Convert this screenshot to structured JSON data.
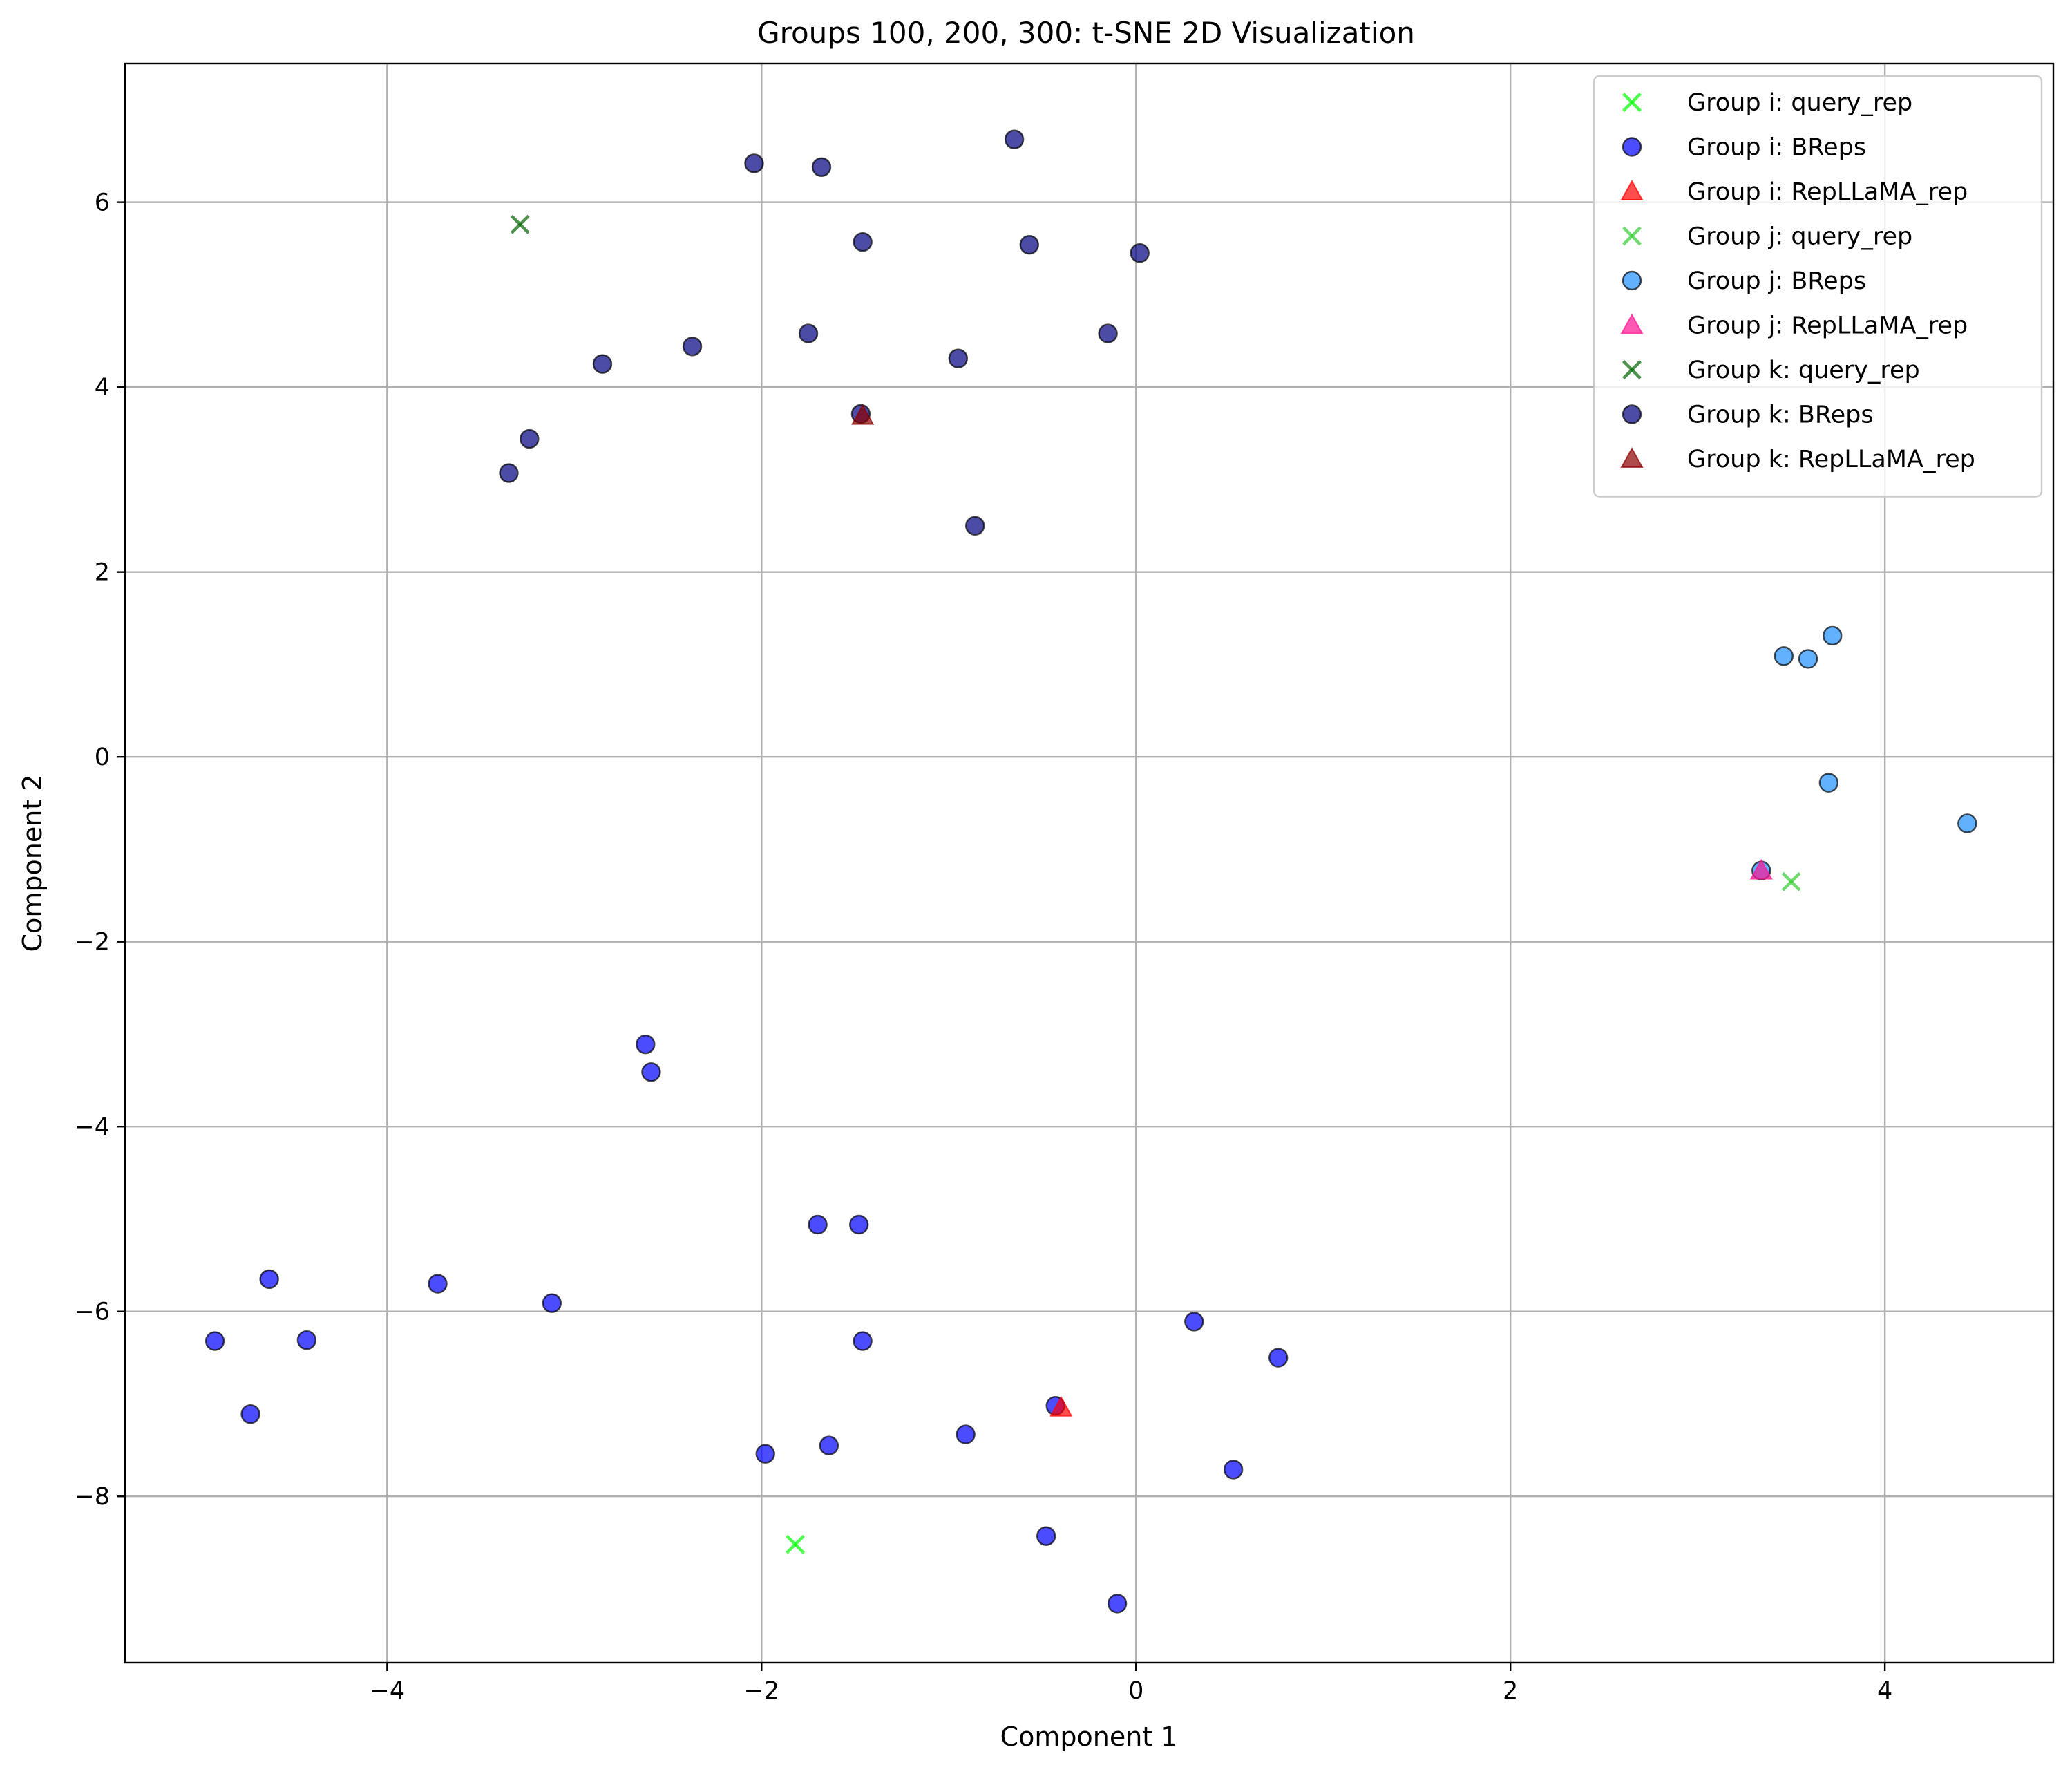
{
  "chart_data": {
    "type": "scatter",
    "title": "Groups 100, 200, 300: t-SNE 2D Visualization",
    "xlabel": "Component 1",
    "ylabel": "Component 2",
    "xlim": [
      -5.4,
      4.9
    ],
    "ylim": [
      -9.8,
      7.5
    ],
    "xticks": [
      -4,
      -2,
      0,
      2,
      4
    ],
    "xtick_labels": [
      "−4",
      "−2",
      "0",
      "2",
      "4"
    ],
    "yticks": [
      -8,
      -6,
      -4,
      -2,
      0,
      2,
      4,
      6
    ],
    "ytick_labels": [
      "−8",
      "−6",
      "−4",
      "−2",
      "0",
      "2",
      "4",
      "6"
    ],
    "grid": true,
    "legend_position": "top-right",
    "series": [
      {
        "name": "Group i: query_rep",
        "marker": "x",
        "color": "#00ff00",
        "alpha": 0.7,
        "points": [
          [
            -1.82,
            -8.52
          ]
        ]
      },
      {
        "name": "Group i: BReps",
        "marker": "circle",
        "color": "#0000ff",
        "alpha": 0.7,
        "points": [
          [
            -2.62,
            -3.11
          ],
          [
            -2.59,
            -3.41
          ],
          [
            -1.7,
            -5.06
          ],
          [
            -1.48,
            -5.06
          ],
          [
            -4.63,
            -5.65
          ],
          [
            -3.73,
            -5.7
          ],
          [
            -3.12,
            -5.91
          ],
          [
            -4.92,
            -6.32
          ],
          [
            -4.43,
            -6.31
          ],
          [
            -4.73,
            -7.11
          ],
          [
            -1.46,
            -6.32
          ],
          [
            -1.98,
            -7.54
          ],
          [
            -1.64,
            -7.45
          ],
          [
            -0.91,
            -7.33
          ],
          [
            -0.43,
            -7.02
          ],
          [
            0.31,
            -6.11
          ],
          [
            0.76,
            -6.5
          ],
          [
            0.52,
            -7.71
          ],
          [
            -0.48,
            -8.43
          ],
          [
            -0.1,
            -9.16
          ]
        ]
      },
      {
        "name": "Group i: RepLLaMA_rep",
        "marker": "triangle",
        "color": "#ff0000",
        "alpha": 0.7,
        "points": [
          [
            -0.4,
            -7.04
          ]
        ]
      },
      {
        "name": "Group j: query_rep",
        "marker": "x",
        "color": "#32cd32",
        "alpha": 0.7,
        "points": [
          [
            3.5,
            -1.35
          ]
        ]
      },
      {
        "name": "Group j: BReps",
        "marker": "circle",
        "color": "#1e90ff",
        "alpha": 0.7,
        "points": [
          [
            3.46,
            1.09
          ],
          [
            3.59,
            1.06
          ],
          [
            3.72,
            1.31
          ],
          [
            3.7,
            -0.28
          ],
          [
            4.44,
            -0.72
          ],
          [
            3.34,
            -1.23
          ]
        ]
      },
      {
        "name": "Group j: RepLLaMA_rep",
        "marker": "triangle",
        "color": "#ff1493",
        "alpha": 0.7,
        "points": [
          [
            3.34,
            -1.23
          ]
        ]
      },
      {
        "name": "Group k: query_rep",
        "marker": "x",
        "color": "#006400",
        "alpha": 0.7,
        "points": [
          [
            -3.29,
            5.76
          ]
        ]
      },
      {
        "name": "Group k: BReps",
        "marker": "circle",
        "color": "#000080",
        "alpha": 0.7,
        "points": [
          [
            -2.04,
            6.42
          ],
          [
            -1.68,
            6.38
          ],
          [
            -0.65,
            6.68
          ],
          [
            -1.46,
            5.57
          ],
          [
            -0.57,
            5.54
          ],
          [
            0.02,
            5.45
          ],
          [
            -2.85,
            4.25
          ],
          [
            -2.37,
            4.44
          ],
          [
            -1.75,
            4.58
          ],
          [
            -0.95,
            4.31
          ],
          [
            -0.15,
            4.58
          ],
          [
            -1.47,
            3.71
          ],
          [
            -3.24,
            3.44
          ],
          [
            -3.35,
            3.07
          ],
          [
            -0.86,
            2.5
          ]
        ]
      },
      {
        "name": "Group k: RepLLaMA_rep",
        "marker": "triangle",
        "color": "#8b0000",
        "alpha": 0.7,
        "points": [
          [
            -1.46,
            3.69
          ]
        ]
      }
    ]
  }
}
